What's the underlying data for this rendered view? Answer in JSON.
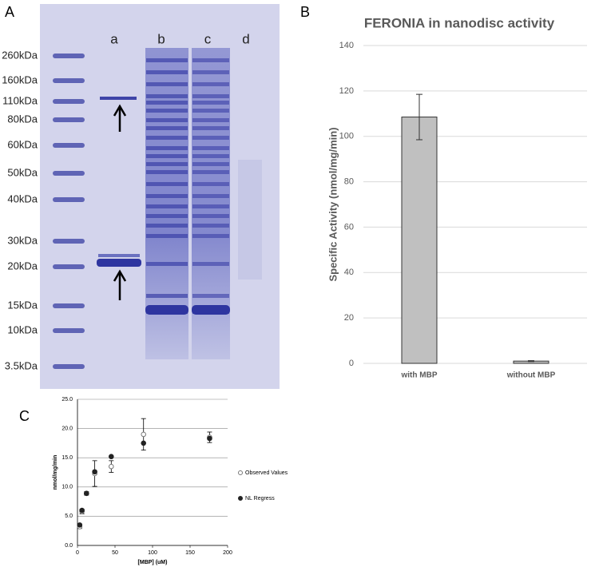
{
  "gel": {
    "panel_label": "A",
    "lane_labels": [
      "a",
      "b",
      "c",
      "d"
    ],
    "marker_labels": [
      "260kDa",
      "160kDa",
      "110kDa",
      "80kDa",
      "60kDa",
      "50kDa",
      "40kDa",
      "30kDa",
      "20kDa",
      "15kDa",
      "10kDa",
      "3.5kDa"
    ]
  },
  "chart_data": [
    {
      "type": "bar",
      "panel_label": "B",
      "title": "FERONIA in nanodisc activity",
      "y_label": "Specific Activity (nmol/mg/min)",
      "categories": [
        "with MBP",
        "without MBP"
      ],
      "values": [
        108.5,
        1
      ],
      "errors": [
        10,
        0.2
      ],
      "color": "#c0c0c0",
      "ylim": [
        0,
        140
      ],
      "yticks": [
        0,
        20,
        40,
        60,
        80,
        100,
        120,
        140
      ],
      "grid": true
    },
    {
      "type": "scatter",
      "panel_label": "C",
      "x_label": "[MBP] (uM)",
      "y_label": "nmol/mg/min",
      "series": [
        {
          "name": "Observed Values",
          "marker": "open",
          "color": "#777777",
          "x": [
            3,
            6,
            12,
            23,
            45,
            88,
            176
          ],
          "values": [
            3.2,
            5.8,
            8.9,
            12.3,
            13.5,
            19.0,
            18.5
          ],
          "errors": [
            0.3,
            0.4,
            0.3,
            2.2,
            1.0,
            2.7,
            0.9
          ]
        },
        {
          "name": "NL Regress",
          "marker": "filled",
          "color": "#222222",
          "x": [
            3,
            6,
            12,
            23,
            45,
            88,
            176
          ],
          "values": [
            3.5,
            6.0,
            8.9,
            12.6,
            15.2,
            17.5,
            18.3
          ]
        }
      ],
      "xlim": [
        0,
        200
      ],
      "xticks": [
        0,
        50,
        100,
        150,
        200
      ],
      "ylim": [
        0,
        25
      ],
      "yticks": [
        {
          "value": 0,
          "label": "0.0"
        },
        {
          "value": 5,
          "label": "5.0"
        },
        {
          "value": 10,
          "label": "10.0"
        },
        {
          "value": 15,
          "label": "15.0"
        },
        {
          "value": 20,
          "label": "20.0"
        },
        {
          "value": 25,
          "label": "25.0"
        }
      ],
      "grid": true,
      "legend": "right"
    }
  ]
}
